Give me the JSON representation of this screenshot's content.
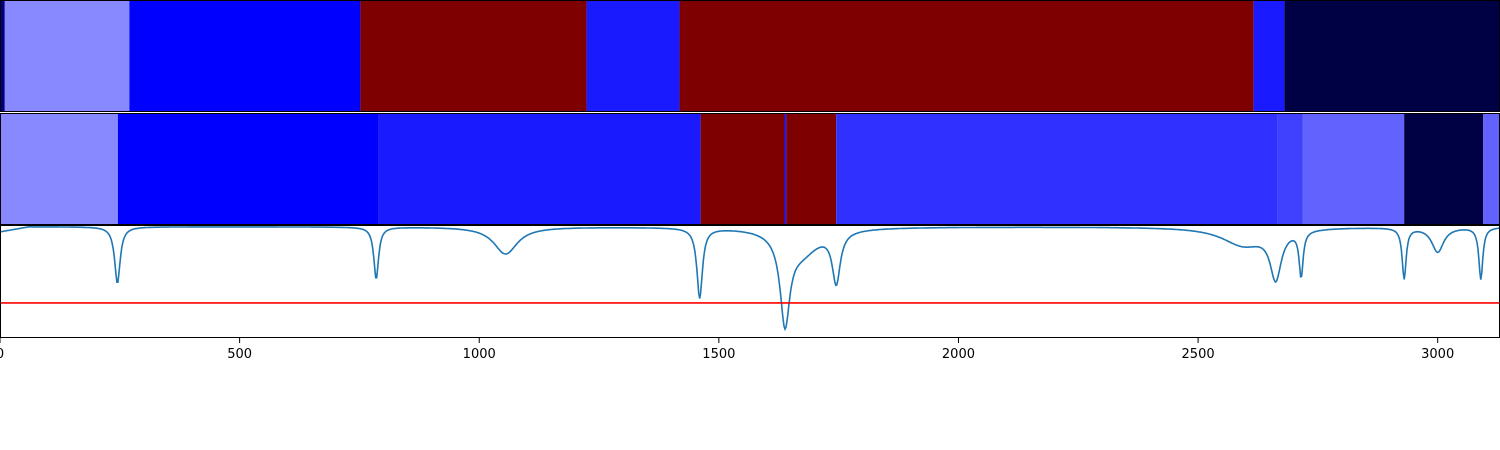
{
  "chart_data": {
    "type": "heatmap",
    "xlim": [
      0,
      3130
    ],
    "x_ticks": [
      0,
      500,
      1000,
      1500,
      2000,
      2500,
      3000
    ],
    "tick_labels": [
      "0",
      "500",
      "1000",
      "1500",
      "2000",
      "2500",
      "3000"
    ],
    "grid": false,
    "bands": [
      {
        "segments": [
          {
            "start": 0,
            "end": 10,
            "color": "#00007f"
          },
          {
            "start": 10,
            "end": 270,
            "color": "#8888ff"
          },
          {
            "start": 270,
            "end": 752,
            "color": "#0000ff"
          },
          {
            "start": 752,
            "end": 1224,
            "color": "#7f0000"
          },
          {
            "start": 1224,
            "end": 1418,
            "color": "#1a1aff"
          },
          {
            "start": 1418,
            "end": 2616,
            "color": "#7f0000"
          },
          {
            "start": 2616,
            "end": 2680,
            "color": "#1a1aff"
          },
          {
            "start": 2680,
            "end": 3130,
            "color": "#000045"
          }
        ]
      },
      {
        "segments": [
          {
            "start": 0,
            "end": 246,
            "color": "#8888ff"
          },
          {
            "start": 246,
            "end": 790,
            "color": "#0000ff"
          },
          {
            "start": 790,
            "end": 1462,
            "color": "#1a1aff"
          },
          {
            "start": 1462,
            "end": 1637,
            "color": "#7f0000"
          },
          {
            "start": 1637,
            "end": 1641,
            "color": "#1a1aff"
          },
          {
            "start": 1641,
            "end": 1745,
            "color": "#7f0000"
          },
          {
            "start": 1745,
            "end": 2666,
            "color": "#3030ff"
          },
          {
            "start": 2666,
            "end": 2718,
            "color": "#4040ff"
          },
          {
            "start": 2718,
            "end": 2930,
            "color": "#6262ff"
          },
          {
            "start": 2930,
            "end": 3095,
            "color": "#000045"
          },
          {
            "start": 3095,
            "end": 3130,
            "color": "#6262ff"
          }
        ]
      }
    ],
    "signal": {
      "color": "#1f77b4",
      "ylim": [
        0,
        1
      ],
      "baseline": 0.985,
      "start_level": 0.94,
      "dips": [
        {
          "center": 245,
          "depth": 0.5,
          "width": 7
        },
        {
          "center": 785,
          "depth": 0.46,
          "width": 6
        },
        {
          "center": 1055,
          "depth": 0.24,
          "width": 30
        },
        {
          "center": 1460,
          "depth": 0.62,
          "width": 7
        },
        {
          "center": 1638,
          "depth": 0.76,
          "width": 12
        },
        {
          "center": 1672,
          "depth": 0.22,
          "width": 45
        },
        {
          "center": 1745,
          "depth": 0.45,
          "width": 10
        },
        {
          "center": 2595,
          "depth": 0.16,
          "width": 55
        },
        {
          "center": 2662,
          "depth": 0.42,
          "width": 14
        },
        {
          "center": 2715,
          "depth": 0.4,
          "width": 5
        },
        {
          "center": 2930,
          "depth": 0.45,
          "width": 5
        },
        {
          "center": 3000,
          "depth": 0.22,
          "width": 15
        },
        {
          "center": 3090,
          "depth": 0.46,
          "width": 5
        }
      ],
      "threshold": 0.31,
      "threshold_color": "#ff0000"
    }
  }
}
